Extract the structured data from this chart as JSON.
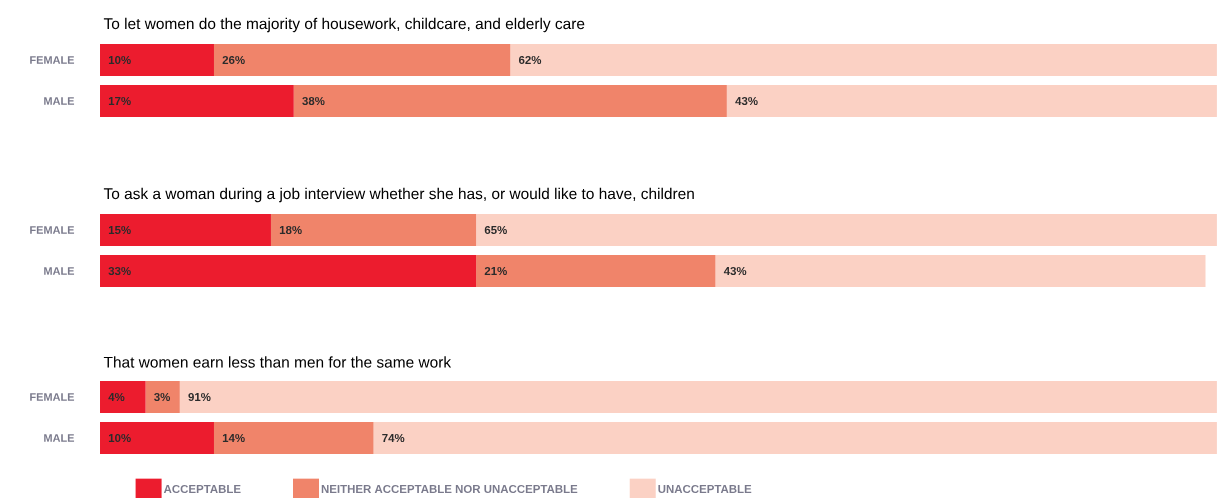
{
  "chart_data": [
    {
      "type": "bar",
      "orientation": "horizontal",
      "stacked": true,
      "title": "To let women do the majority of housework, childcare, and elderly care",
      "categories": [
        "FEMALE",
        "MALE"
      ],
      "tick_labels": "y",
      "series": [
        {
          "color": "#ec1c2e",
          "values": [
            10,
            17
          ],
          "value_labels": [
            "10%",
            "17%"
          ]
        },
        {
          "color": "#f0846a",
          "values": [
            26,
            38
          ],
          "value_labels": [
            "26%",
            "38%"
          ]
        },
        {
          "color": "#fbd1c4",
          "values": [
            62,
            43
          ],
          "value_labels": [
            "62%",
            "43%"
          ]
        }
      ]
    },
    {
      "type": "bar",
      "orientation": "horizontal",
      "stacked": true,
      "title": "To ask a woman during a job interview whether she has, or would like to have, children",
      "categories": [
        "FEMALE",
        "MALE"
      ],
      "tick_labels": "y",
      "series": [
        {
          "color": "#ec1c2e",
          "values": [
            15,
            33
          ],
          "value_labels": [
            "15%",
            "33%"
          ]
        },
        {
          "color": "#f0846a",
          "values": [
            18,
            21
          ],
          "value_labels": [
            "18%",
            "21%"
          ]
        },
        {
          "color": "#fbd1c4",
          "values": [
            65,
            43
          ],
          "value_labels": [
            "65%",
            "43%"
          ]
        }
      ]
    },
    {
      "type": "bar",
      "orientation": "horizontal",
      "stacked": true,
      "title": "That women earn less than men for the same work",
      "categories": [
        "FEMALE",
        "MALE"
      ],
      "tick_labels": "y",
      "legend": "bottom",
      "series": [
        {
          "name": "ACCEPTABLE",
          "color": "#ec1c2e",
          "values": [
            4,
            10
          ],
          "value_labels": [
            "4%",
            "10%"
          ]
        },
        {
          "name": "NEITHER ACCEPTABLE NOR UNACCEPTABLE",
          "color": "#f0846a",
          "values": [
            3,
            14
          ],
          "value_labels": [
            "3%",
            "14%"
          ]
        },
        {
          "name": "UNACCEPTABLE",
          "color": "#fbd1c4",
          "values": [
            91,
            74
          ],
          "value_labels": [
            "91%",
            "74%"
          ]
        }
      ]
    }
  ]
}
